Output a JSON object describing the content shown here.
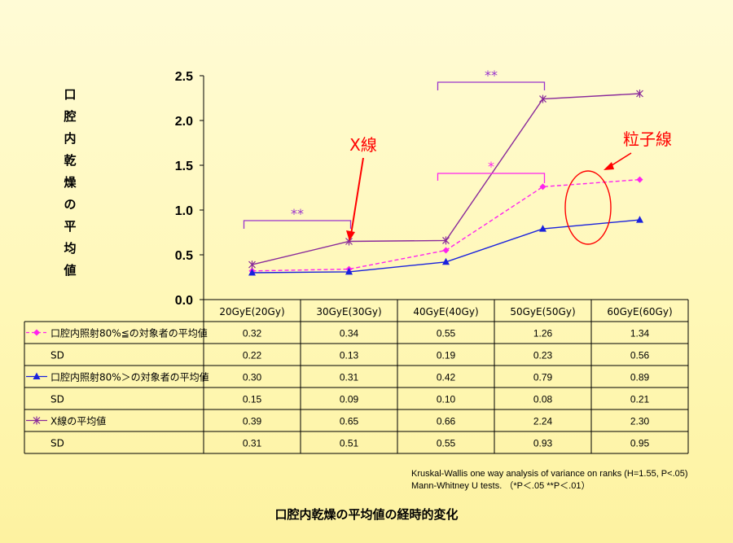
{
  "chart_data": {
    "type": "line",
    "title": "口腔内乾燥の平均値の経時的変化",
    "ylabel": "口腔内乾燥の平均値",
    "xlabel": "",
    "ylim": [
      0,
      2.5
    ],
    "y_ticks": [
      "0.0",
      "0.5",
      "1.0",
      "1.5",
      "2.0",
      "2.5"
    ],
    "categories": [
      "20GyE(20Gy)",
      "30GyE(30Gy)",
      "40GyE(40Gy)",
      "50GyE(50Gy)",
      "60GyE(60Gy)"
    ],
    "series": [
      {
        "name": "口腔内照射80%≦の対象者の平均値",
        "values": [
          0.32,
          0.34,
          0.55,
          1.26,
          1.34
        ],
        "sd": [
          0.22,
          0.13,
          0.19,
          0.23,
          0.56
        ],
        "color": "#ff22ee",
        "marker": "diamond",
        "dashed": true
      },
      {
        "name": "口腔内照射80%＞の対象者の平均値",
        "values": [
          0.3,
          0.31,
          0.42,
          0.79,
          0.89
        ],
        "sd": [
          0.15,
          0.09,
          0.1,
          0.08,
          0.21
        ],
        "color": "#1a22dd",
        "marker": "triangle",
        "dashed": false
      },
      {
        "name": "X線の平均値",
        "values": [
          0.39,
          0.65,
          0.66,
          2.24,
          2.3
        ],
        "sd": [
          0.31,
          0.51,
          0.55,
          0.93,
          0.95
        ],
        "color": "#8a2a9a",
        "marker": "star",
        "dashed": false
      }
    ],
    "table_rows": [
      {
        "label": "口腔内照射80%≦の対象者の平均値",
        "values": [
          "0.32",
          "0.34",
          "0.55",
          "1.26",
          "1.34"
        ]
      },
      {
        "label": "SD",
        "values": [
          "0.22",
          "0.13",
          "0.19",
          "0.23",
          "0.56"
        ]
      },
      {
        "label": "口腔内照射80%＞の対象者の平均値",
        "values": [
          "0.30",
          "0.31",
          "0.42",
          "0.79",
          "0.89"
        ]
      },
      {
        "label": "SD",
        "values": [
          "0.15",
          "0.09",
          "0.10",
          "0.08",
          "0.21"
        ]
      },
      {
        "label": "X線の平均値",
        "values": [
          "0.39",
          "0.65",
          "0.66",
          "2.24",
          "2.30"
        ]
      },
      {
        "label": "SD",
        "values": [
          "0.31",
          "0.51",
          "0.55",
          "0.93",
          "0.95"
        ]
      }
    ],
    "significance": [
      {
        "mark": "**",
        "from": 0,
        "to": 1,
        "color": "#9933cc"
      },
      {
        "mark": "*",
        "from": 2,
        "to": 3,
        "color": "#ff22ee"
      },
      {
        "mark": "**",
        "from": 2,
        "to": 3,
        "color": "#9933cc"
      }
    ],
    "annotations": [
      {
        "text": "X線",
        "color": "#ff0000"
      },
      {
        "text": "粒子線",
        "color": "#ff0000"
      }
    ]
  },
  "notes": {
    "line1": "Kruskal-Wallis one way analysis of variance on ranks (H=1.55, P<.05)",
    "line2": "Mann-Whitney  U tests.  （*P＜.05  **P＜.01）"
  }
}
